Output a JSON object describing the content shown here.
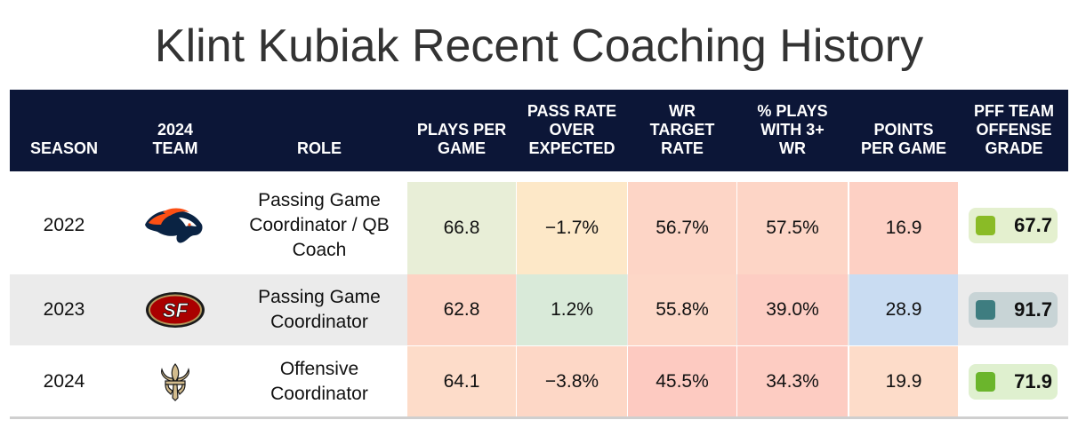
{
  "title": "Klint Kubiak Recent Coaching History",
  "colors": {
    "header_bg": "#0c1637",
    "row_alt_bg": "#ebebeb"
  },
  "chart_data": {
    "type": "table",
    "title": "Klint Kubiak Recent Coaching History",
    "columns": [
      {
        "key": "season",
        "label": "SEASON"
      },
      {
        "key": "team",
        "label": "2024 TEAM"
      },
      {
        "key": "role",
        "label": "ROLE"
      },
      {
        "key": "plays_per_game",
        "label": "PLAYS PER GAME"
      },
      {
        "key": "proe",
        "label": "PASS RATE OVER EXPECTED"
      },
      {
        "key": "wr_target_rate",
        "label": "WR TARGET RATE"
      },
      {
        "key": "pct_3wr",
        "label": "% PLAYS WITH 3+ WR"
      },
      {
        "key": "ppg",
        "label": "POINTS PER GAME"
      },
      {
        "key": "pff_grade",
        "label": "PFF TEAM OFFENSE GRADE"
      }
    ],
    "rows": [
      {
        "season": "2022",
        "team_icon": "broncos-logo-icon",
        "role": "Passing Game Coordinator / QB Coach",
        "plays_per_game": "66.8",
        "proe": "−1.7%",
        "wr_target_rate": "56.7%",
        "pct_3wr": "57.5%",
        "ppg": "16.9",
        "pff_grade": "67.7",
        "cell_colors": [
          "#e8eed7",
          "#fde8c8",
          "#fdd5c6",
          "#fdd5c6",
          "#fdd0c4"
        ],
        "grade_bg": "#e4f0cf",
        "grade_dot": "#8abb26"
      },
      {
        "season": "2023",
        "team_icon": "49ers-logo-icon",
        "role": "Passing Game Coordinator",
        "plays_per_game": "62.8",
        "proe": "1.2%",
        "wr_target_rate": "55.8%",
        "pct_3wr": "39.0%",
        "ppg": "28.9",
        "pff_grade": "91.7",
        "cell_colors": [
          "#fdd3c4",
          "#d9ead9",
          "#fdd7c7",
          "#fdcdc3",
          "#c9dcf2"
        ],
        "grade_bg": "#c8d4d6",
        "grade_dot": "#3e7d80"
      },
      {
        "season": "2024",
        "team_icon": "saints-logo-icon",
        "role": "Offensive Coordinator",
        "plays_per_game": "64.1",
        "proe": "−3.8%",
        "wr_target_rate": "45.5%",
        "pct_3wr": "34.3%",
        "ppg": "19.9",
        "pff_grade": "71.9",
        "cell_colors": [
          "#fddcc9",
          "#fdd7c6",
          "#fdcac1",
          "#fdccc2",
          "#fddcc9"
        ],
        "grade_bg": "#dff0cf",
        "grade_dot": "#6bb52c"
      }
    ]
  }
}
